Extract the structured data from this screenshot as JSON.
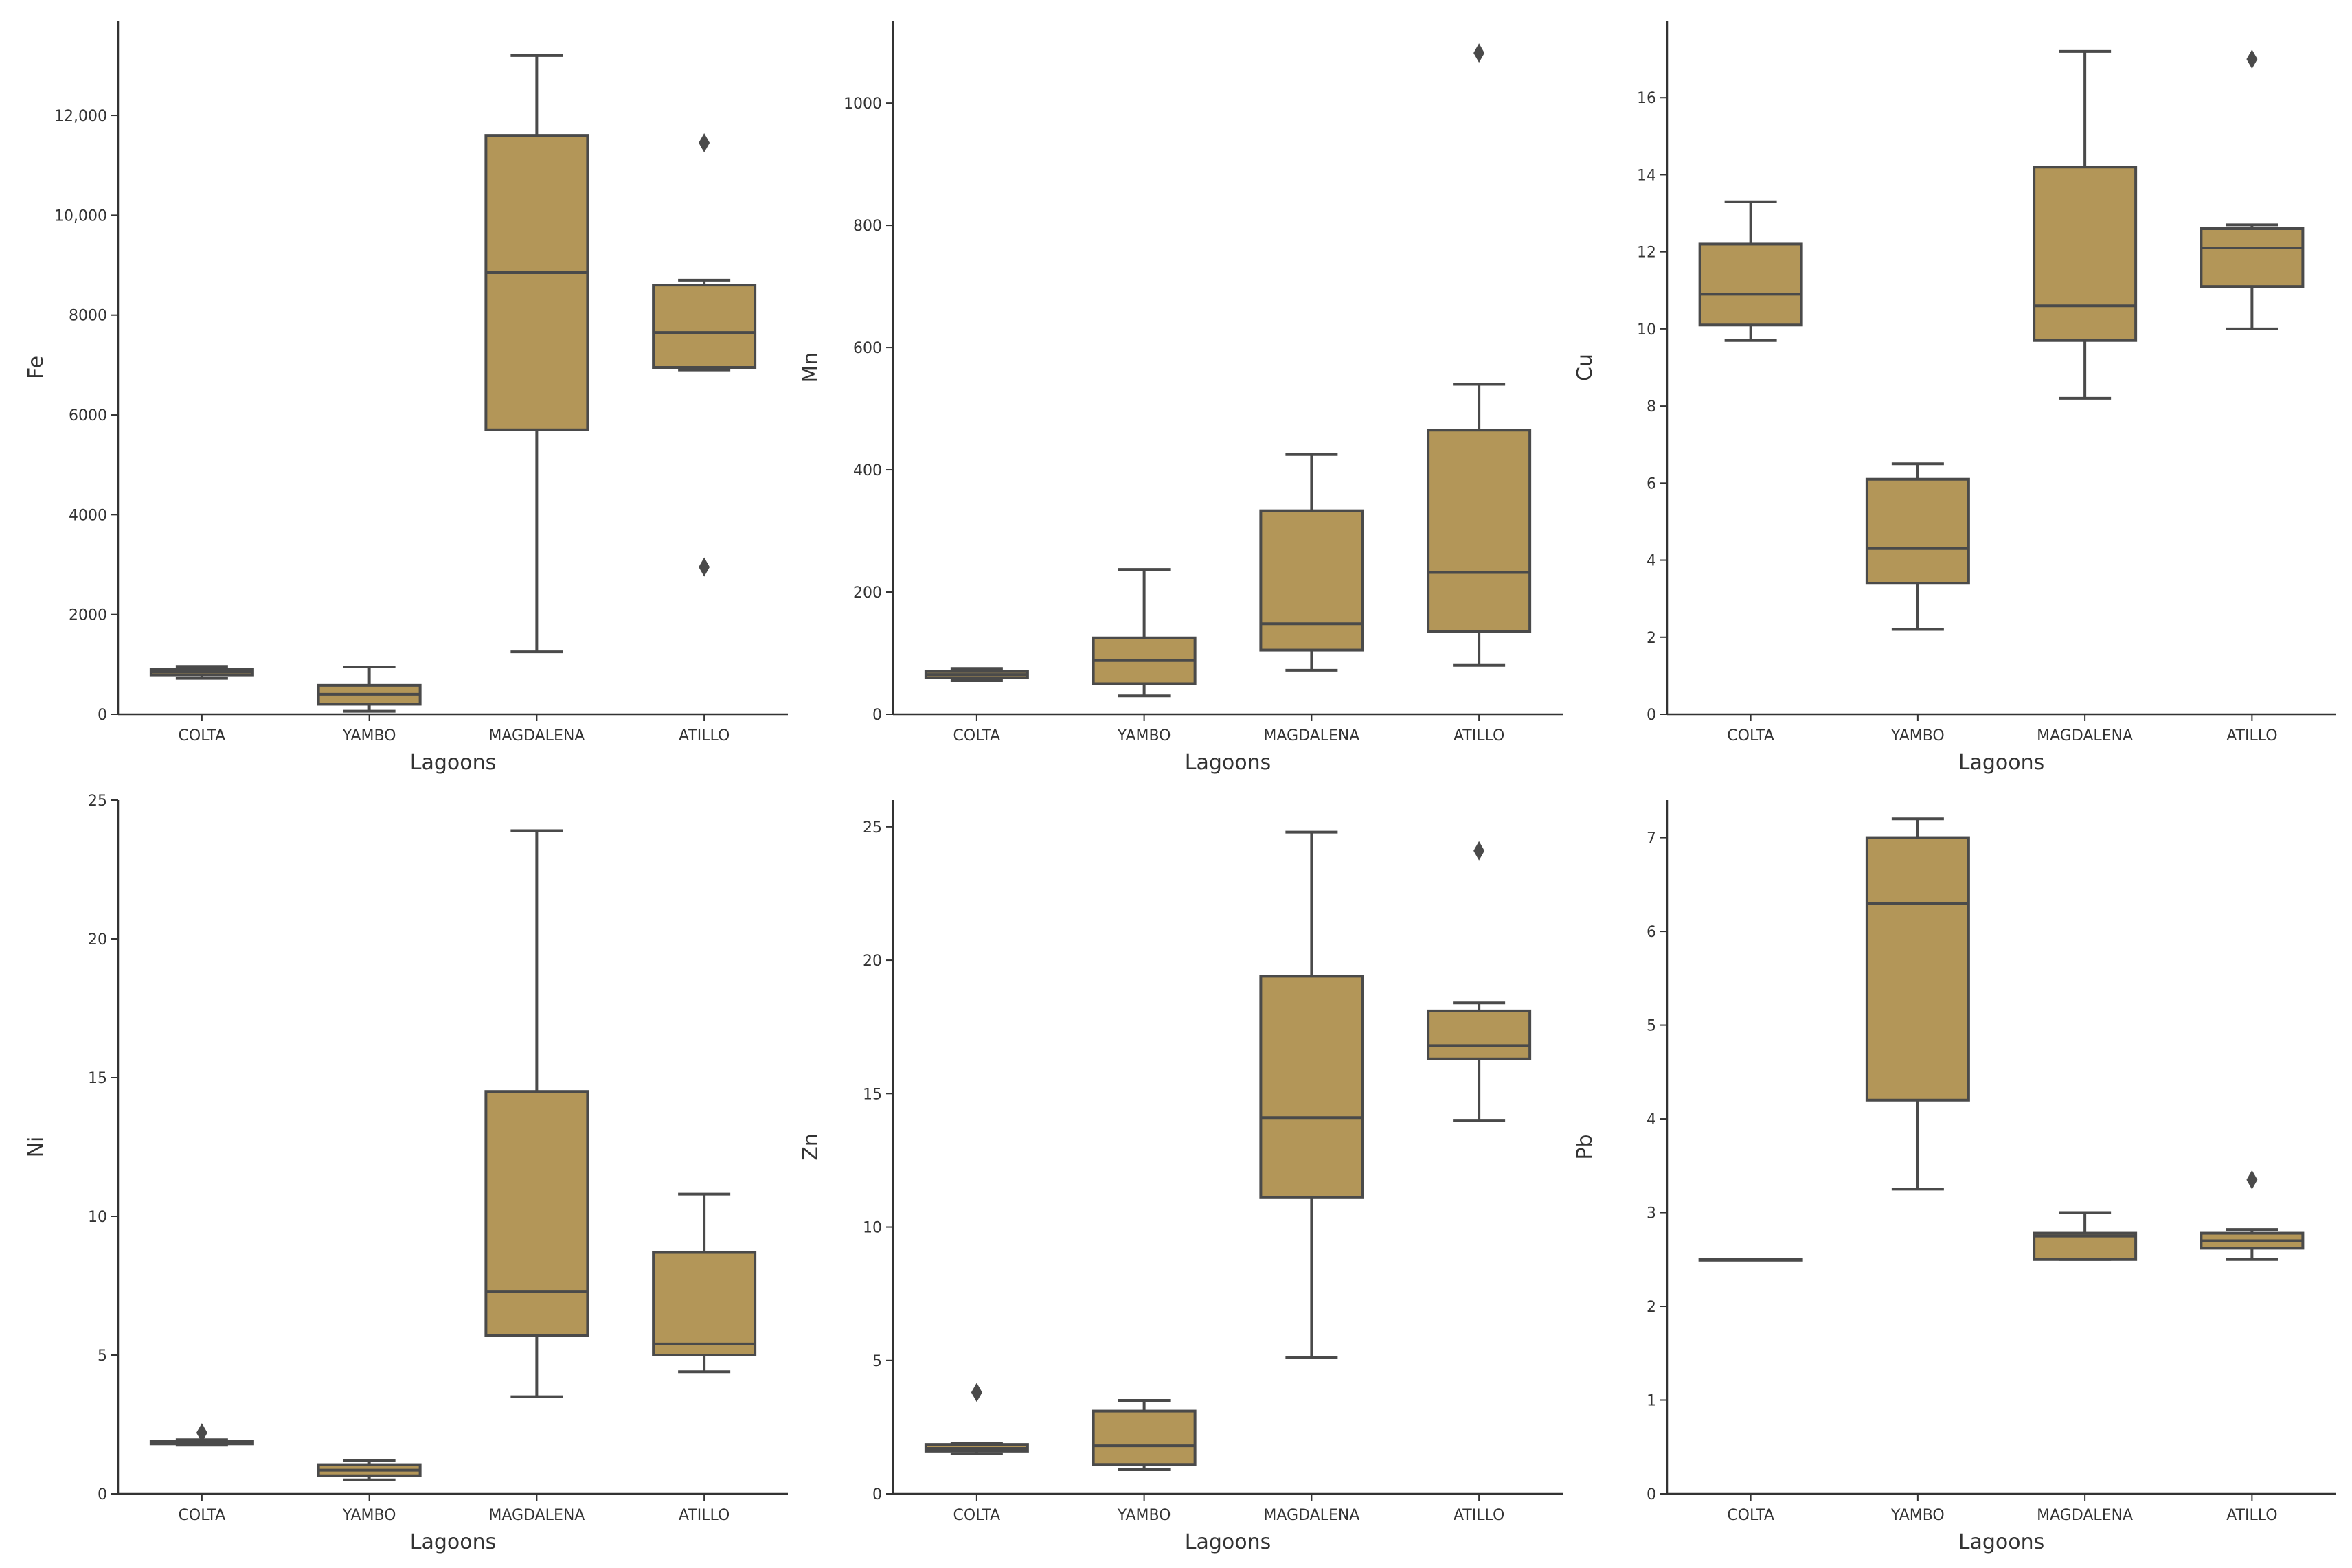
{
  "chart_data": [
    {
      "type": "box",
      "xlabel": "Lagoons",
      "ylabel": "Fe",
      "categories": [
        "COLTA",
        "YAMBO",
        "MAGDALENA",
        "ATILLO"
      ],
      "ylim": [
        0,
        13900
      ],
      "yticks": [
        0,
        2000,
        4000,
        6000,
        8000,
        10000,
        12000
      ],
      "ytick_labels": [
        "0",
        "2000",
        "4000",
        "6000",
        "8000",
        "10,000",
        "12,000"
      ],
      "box_color": "#b39658",
      "boxes": [
        {
          "label": "COLTA",
          "whislo": 720,
          "q1": 790,
          "med": 850,
          "q3": 900,
          "whishi": 960,
          "fliers": []
        },
        {
          "label": "YAMBO",
          "whislo": 60,
          "q1": 200,
          "med": 400,
          "q3": 580,
          "whishi": 950,
          "fliers": []
        },
        {
          "label": "MAGDALENA",
          "whislo": 1250,
          "q1": 5700,
          "med": 8850,
          "q3": 11600,
          "whishi": 13200,
          "fliers": []
        },
        {
          "label": "ATILLO",
          "whislo": 6900,
          "q1": 6950,
          "med": 7650,
          "q3": 8600,
          "whishi": 8700,
          "fliers": [
            11450,
            2950
          ]
        }
      ]
    },
    {
      "type": "box",
      "xlabel": "Lagoons",
      "ylabel": "Mn",
      "categories": [
        "COLTA",
        "YAMBO",
        "MAGDALENA",
        "ATILLO"
      ],
      "ylim": [
        0,
        1135
      ],
      "yticks": [
        0,
        200,
        400,
        600,
        800,
        1000
      ],
      "ytick_labels": [
        "0",
        "200",
        "400",
        "600",
        "800",
        "1000"
      ],
      "box_color": "#b39658",
      "boxes": [
        {
          "label": "COLTA",
          "whislo": 55,
          "q1": 60,
          "med": 65,
          "q3": 70,
          "whishi": 75,
          "fliers": []
        },
        {
          "label": "YAMBO",
          "whislo": 30,
          "q1": 50,
          "med": 88,
          "q3": 125,
          "whishi": 237,
          "fliers": []
        },
        {
          "label": "MAGDALENA",
          "whislo": 72,
          "q1": 105,
          "med": 148,
          "q3": 333,
          "whishi": 425,
          "fliers": []
        },
        {
          "label": "ATILLO",
          "whislo": 80,
          "q1": 135,
          "med": 232,
          "q3": 465,
          "whishi": 540,
          "fliers": [
            1082
          ]
        }
      ]
    },
    {
      "type": "box",
      "xlabel": "Lagoons",
      "ylabel": "Cu",
      "categories": [
        "COLTA",
        "YAMBO",
        "MAGDALENA",
        "ATILLO"
      ],
      "ylim": [
        0,
        18
      ],
      "yticks": [
        0,
        2,
        4,
        6,
        8,
        10,
        12,
        14,
        16
      ],
      "ytick_labels": [
        "0",
        "2",
        "4",
        "6",
        "8",
        "10",
        "12",
        "14",
        "16"
      ],
      "box_color": "#b39658",
      "boxes": [
        {
          "label": "COLTA",
          "whislo": 9.7,
          "q1": 10.1,
          "med": 10.9,
          "q3": 12.2,
          "whishi": 13.3,
          "fliers": []
        },
        {
          "label": "YAMBO",
          "whislo": 2.2,
          "q1": 3.4,
          "med": 4.3,
          "q3": 6.1,
          "whishi": 6.5,
          "fliers": []
        },
        {
          "label": "MAGDALENA",
          "whislo": 8.2,
          "q1": 9.7,
          "med": 10.6,
          "q3": 14.2,
          "whishi": 17.2,
          "fliers": []
        },
        {
          "label": "ATILLO",
          "whislo": 10.0,
          "q1": 11.1,
          "med": 12.1,
          "q3": 12.6,
          "whishi": 12.7,
          "fliers": [
            17.0
          ]
        }
      ]
    },
    {
      "type": "box",
      "xlabel": "Lagoons",
      "ylabel": "Ni",
      "categories": [
        "COLTA",
        "YAMBO",
        "MAGDALENA",
        "ATILLO"
      ],
      "ylim": [
        0,
        25
      ],
      "yticks": [
        0,
        5,
        10,
        15,
        20,
        25
      ],
      "ytick_labels": [
        "0",
        "5",
        "10",
        "15",
        "20",
        "25"
      ],
      "box_color": "#b39658",
      "boxes": [
        {
          "label": "COLTA",
          "whislo": 1.75,
          "q1": 1.8,
          "med": 1.85,
          "q3": 1.9,
          "whishi": 1.95,
          "fliers": [
            2.2
          ]
        },
        {
          "label": "YAMBO",
          "whislo": 0.5,
          "q1": 0.65,
          "med": 0.85,
          "q3": 1.05,
          "whishi": 1.2,
          "fliers": []
        },
        {
          "label": "MAGDALENA",
          "whislo": 3.5,
          "q1": 5.7,
          "med": 7.3,
          "q3": 14.5,
          "whishi": 23.9,
          "fliers": []
        },
        {
          "label": "ATILLO",
          "whislo": 4.4,
          "q1": 5.0,
          "med": 5.4,
          "q3": 8.7,
          "whishi": 10.8,
          "fliers": []
        }
      ]
    },
    {
      "type": "box",
      "xlabel": "Lagoons",
      "ylabel": "Zn",
      "categories": [
        "COLTA",
        "YAMBO",
        "MAGDALENA",
        "ATILLO"
      ],
      "ylim": [
        0,
        26
      ],
      "yticks": [
        0,
        5,
        10,
        15,
        20,
        25
      ],
      "ytick_labels": [
        "0",
        "5",
        "10",
        "15",
        "20",
        "25"
      ],
      "box_color": "#b39658",
      "boxes": [
        {
          "label": "COLTA",
          "whislo": 1.5,
          "q1": 1.6,
          "med": 1.7,
          "q3": 1.85,
          "whishi": 1.9,
          "fliers": [
            3.8
          ]
        },
        {
          "label": "YAMBO",
          "whislo": 0.9,
          "q1": 1.1,
          "med": 1.8,
          "q3": 3.1,
          "whishi": 3.5,
          "fliers": []
        },
        {
          "label": "MAGDALENA",
          "whislo": 5.1,
          "q1": 11.1,
          "med": 14.1,
          "q3": 19.4,
          "whishi": 24.8,
          "fliers": []
        },
        {
          "label": "ATILLO",
          "whislo": 14.0,
          "q1": 16.3,
          "med": 16.8,
          "q3": 18.1,
          "whishi": 18.4,
          "fliers": [
            24.1
          ]
        }
      ]
    },
    {
      "type": "box",
      "xlabel": "Lagoons",
      "ylabel": "Pb",
      "categories": [
        "COLTA",
        "YAMBO",
        "MAGDALENA",
        "ATILLO"
      ],
      "ylim": [
        0,
        7.4
      ],
      "yticks": [
        0,
        1,
        2,
        3,
        4,
        5,
        6,
        7
      ],
      "ytick_labels": [
        "0",
        "1",
        "2",
        "3",
        "4",
        "5",
        "6",
        "7"
      ],
      "box_color": "#b39658",
      "boxes": [
        {
          "label": "COLTA",
          "whislo": 2.5,
          "q1": 2.5,
          "med": 2.5,
          "q3": 2.5,
          "whishi": 2.5,
          "fliers": []
        },
        {
          "label": "YAMBO",
          "whislo": 3.25,
          "q1": 4.2,
          "med": 6.3,
          "q3": 7.0,
          "whishi": 7.2,
          "fliers": []
        },
        {
          "label": "MAGDALENA",
          "whislo": 2.5,
          "q1": 2.5,
          "med": 2.75,
          "q3": 2.78,
          "whishi": 3.0,
          "fliers": []
        },
        {
          "label": "ATILLO",
          "whislo": 2.5,
          "q1": 2.62,
          "med": 2.7,
          "q3": 2.78,
          "whishi": 2.82,
          "fliers": [
            3.35
          ]
        }
      ]
    }
  ]
}
